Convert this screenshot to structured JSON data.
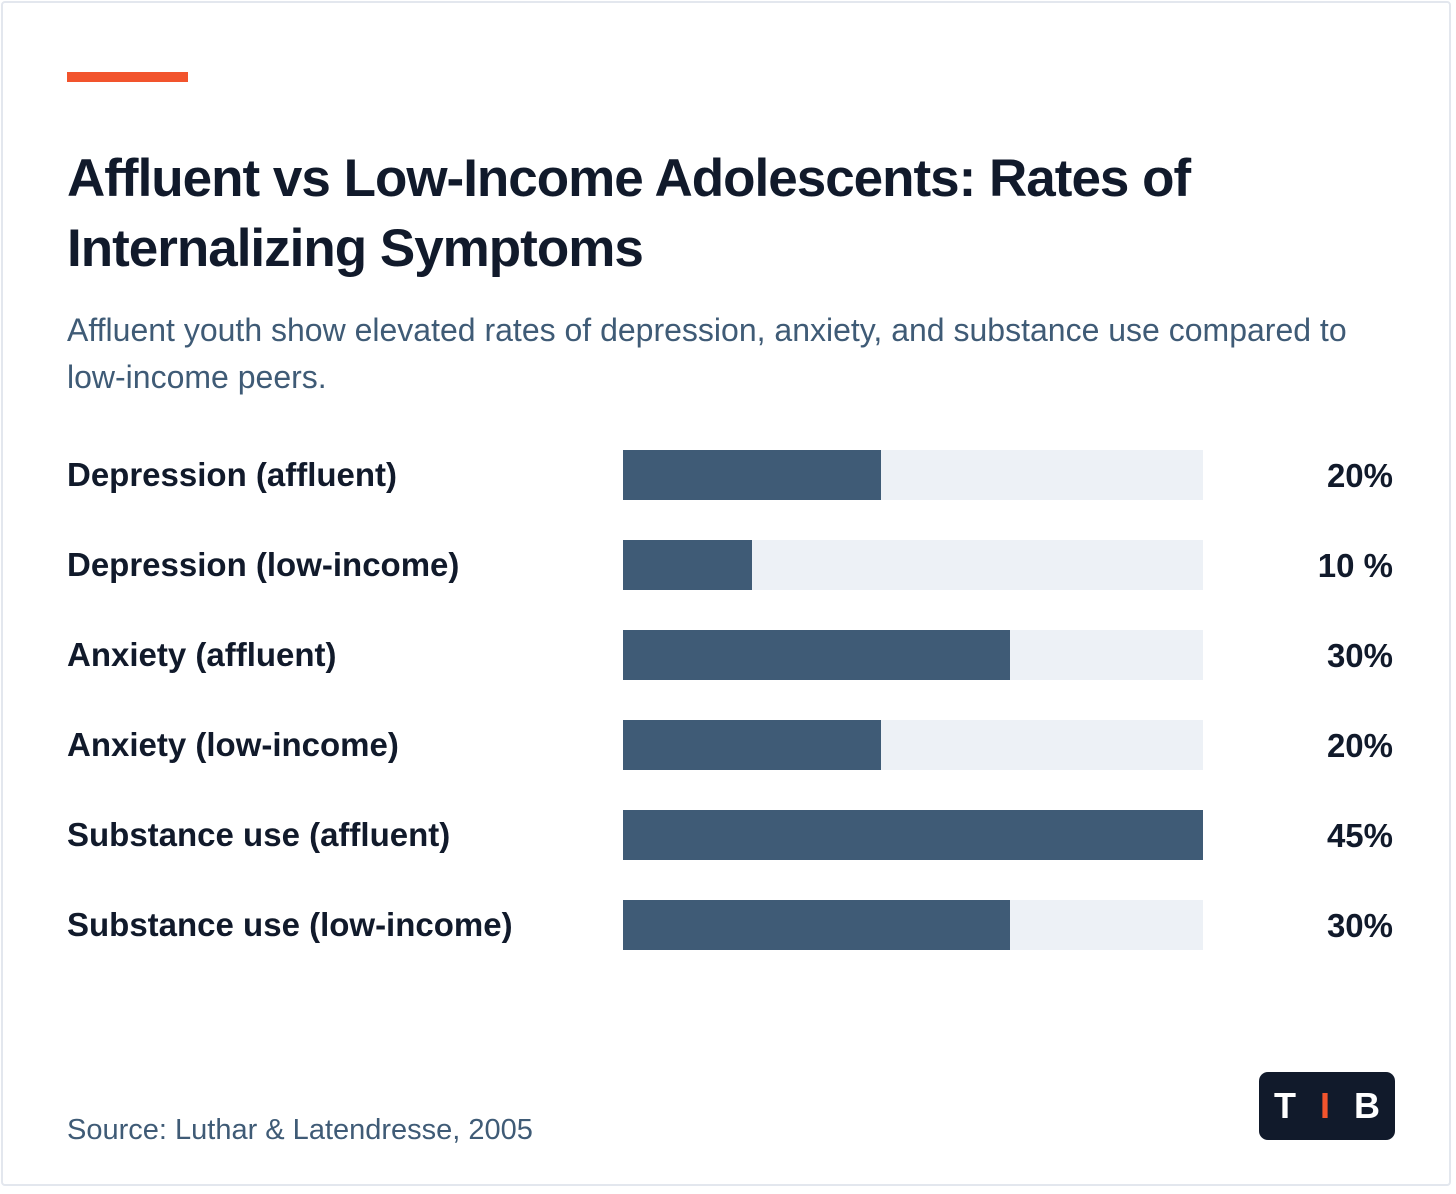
{
  "colors": {
    "accent": "#f2542d",
    "bar_fill": "#3f5b76",
    "bar_track": "#edf1f6",
    "text_dark": "#111a2b",
    "text_muted": "#3f5b76"
  },
  "header": {
    "title": "Affluent vs Low-Income Adolescents: Rates of Internalizing Symptoms",
    "subtitle": "Affluent youth show elevated rates of depression, anxiety, and substance use compared to low-income peers."
  },
  "chart_data": {
    "type": "bar",
    "orientation": "horizontal",
    "title": "Affluent vs Low-Income Adolescents: Rates of Internalizing Symptoms",
    "subtitle": "Affluent youth show elevated rates of depression, anxiety, and substance use compared to low-income peers.",
    "categories": [
      "Depression (affluent)",
      "Depression (low-income)",
      "Anxiety (affluent)",
      "Anxiety (low-income)",
      "Substance use (affluent)",
      "Substance use (low-income)"
    ],
    "values": [
      20,
      10,
      30,
      20,
      45,
      30
    ],
    "value_labels": [
      "20%",
      "10 %",
      "30%",
      "20%",
      "45%",
      "30%"
    ],
    "xlim": [
      0,
      45
    ],
    "grid": false,
    "legend": "none"
  },
  "footer": {
    "source": "Source: Luthar & Latendresse, 2005",
    "logo": [
      "T",
      "I",
      "B"
    ]
  }
}
